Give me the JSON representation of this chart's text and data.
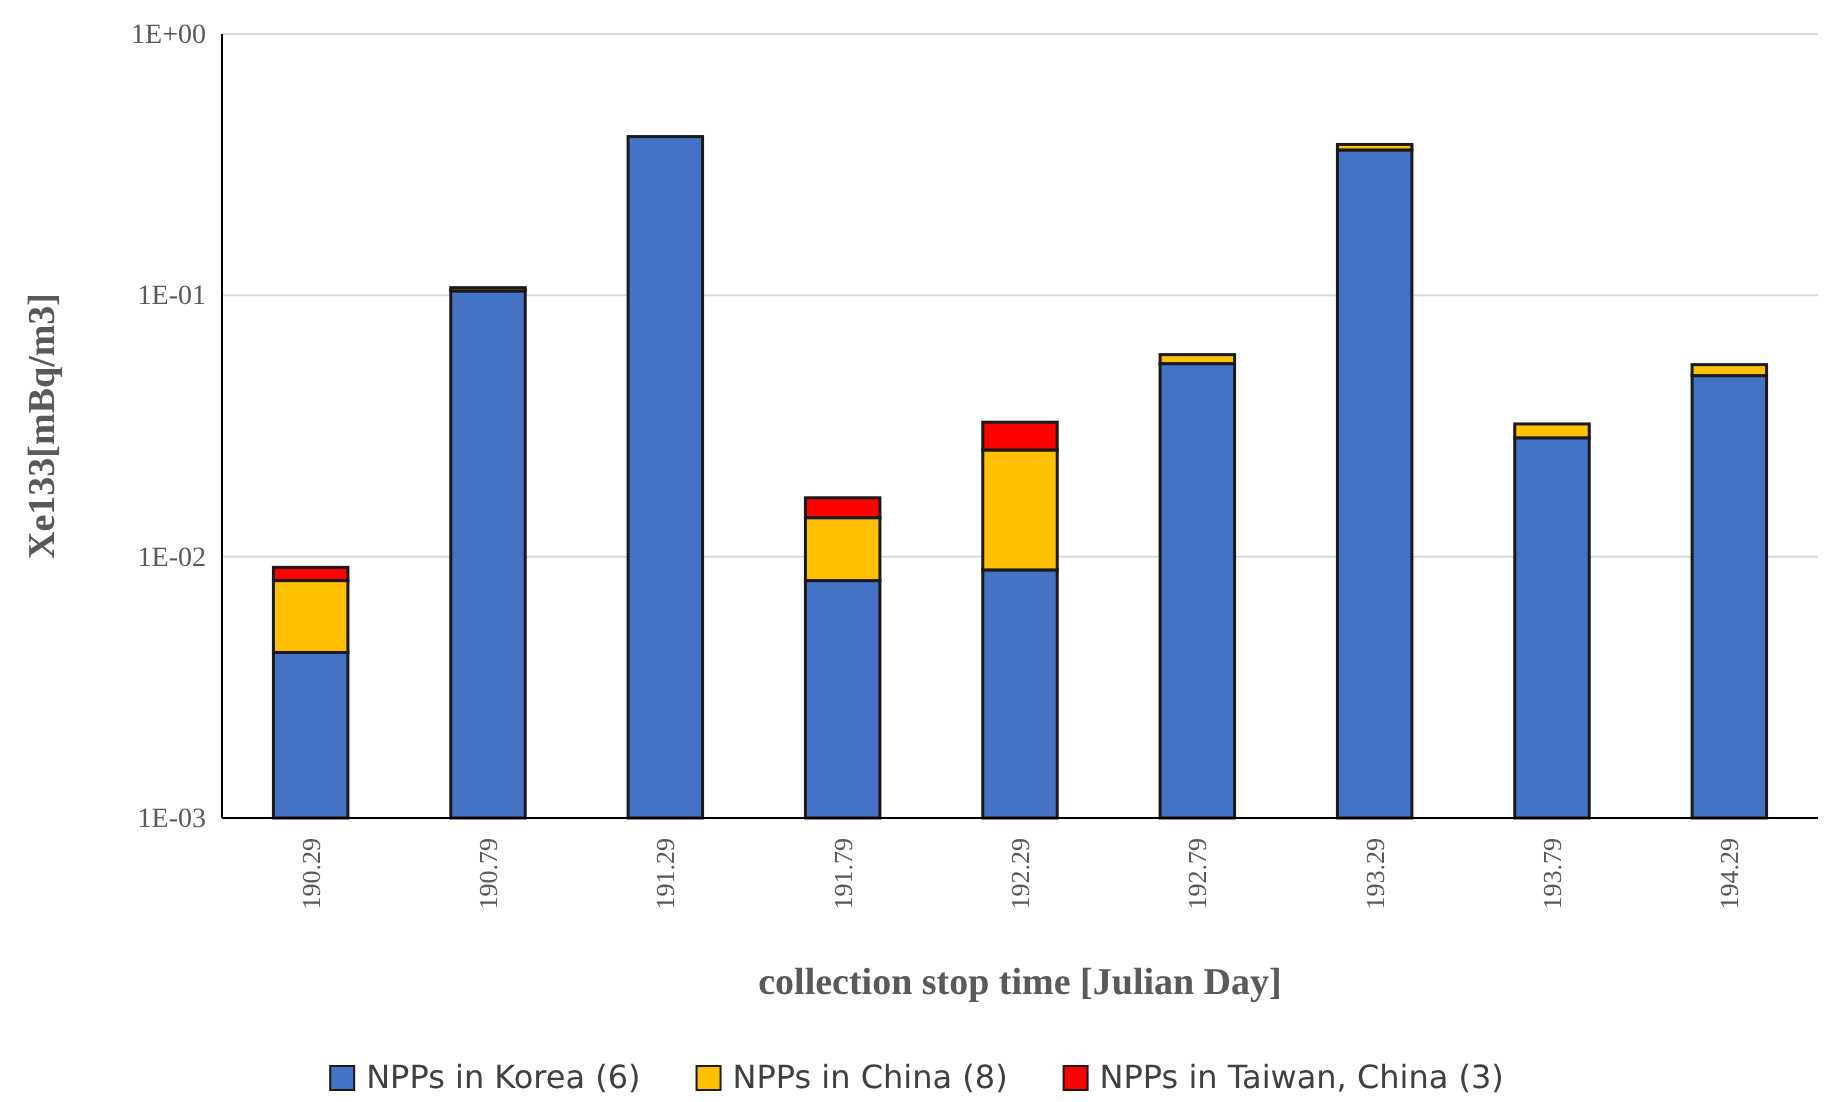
{
  "chart_data": {
    "type": "bar",
    "stacked": true,
    "log": true,
    "xlabel": "collection stop time [Julian Day]",
    "ylabel": "Xe133[mBq/m3]",
    "categories": [
      "190.29",
      "190.79",
      "191.29",
      "191.79",
      "192.29",
      "192.79",
      "193.29",
      "193.79",
      "194.29"
    ],
    "series": [
      {
        "name": "NPPs in Korea (6)",
        "color": "#4472c4",
        "values": [
          0.0043,
          0.104,
          0.405,
          0.0081,
          0.0089,
          0.0548,
          0.36,
          0.0285,
          0.0493
        ]
      },
      {
        "name": "NPPs in China (8)",
        "color": "#ffc000",
        "values": [
          0.0038,
          0.003,
          null,
          0.006,
          0.0167,
          0.0045,
          0.018,
          0.0037,
          0.005
        ]
      },
      {
        "name": "NPPs in Taiwan, China (3)",
        "color": "#ff0000",
        "values": [
          0.001,
          null,
          null,
          0.0027,
          0.0071,
          null,
          null,
          null,
          null
        ]
      }
    ],
    "ylim": [
      0.001,
      1
    ],
    "yticks": [
      {
        "value": 0.001,
        "label": "1E-03"
      },
      {
        "value": 0.01,
        "label": "1E-02"
      },
      {
        "value": 0.1,
        "label": "1E-01"
      },
      {
        "value": 1,
        "label": "1E+00"
      }
    ],
    "grid": "y",
    "legend": "bottom"
  }
}
